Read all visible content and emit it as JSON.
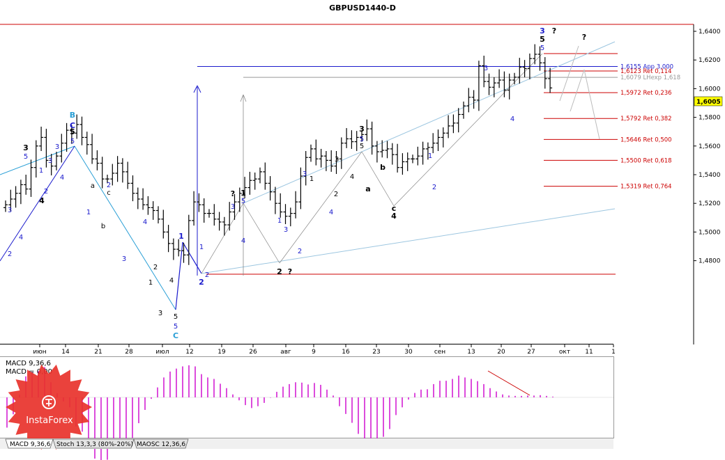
{
  "chart_data": {
    "type": "candlestick",
    "title": "GBPUSD1440-D",
    "price_axis": {
      "ticks": [
        "1,6400",
        "1,6200",
        "1,6000",
        "1,5800",
        "1,5600",
        "1,5400",
        "1,5200",
        "1,5000",
        "1,4800"
      ],
      "tick_values": [
        1.64,
        1.62,
        1.6,
        1.58,
        1.56,
        1.54,
        1.52,
        1.5,
        1.48
      ],
      "current_price": "1,6005",
      "current_value": 1.6005
    },
    "date_axis": {
      "ticks": [
        "июн",
        "14",
        "21",
        "28",
        "июл",
        "12",
        "19",
        "26",
        "авг",
        "9",
        "16",
        "23",
        "30",
        "сен",
        "13",
        "20",
        "27",
        "окт",
        "11",
        "1"
      ]
    },
    "levels": [
      {
        "label": "1,6155 App 3,000",
        "price": 1.6155,
        "color": "#1a1acc",
        "kind": "app"
      },
      {
        "label": "1,6123 Ret 0,114",
        "price": 1.6123,
        "color": "#cc0000",
        "kind": "ret"
      },
      {
        "label": "1,6079 LHexp 1,618",
        "price": 1.6079,
        "color": "#999999",
        "kind": "lh"
      },
      {
        "label": "1,5972 Ret 0,236",
        "price": 1.5972,
        "color": "#cc0000",
        "kind": "ret"
      },
      {
        "label": "1,5792 Ret 0,382",
        "price": 1.5792,
        "color": "#cc0000",
        "kind": "ret"
      },
      {
        "label": "1,5646 Ret 0,500",
        "price": 1.5646,
        "color": "#cc0000",
        "kind": "ret"
      },
      {
        "label": "1,5500 Ret 0,618",
        "price": 1.55,
        "color": "#cc0000",
        "kind": "ret"
      },
      {
        "label": "1,5319 Ret 0,764",
        "price": 1.5319,
        "color": "#cc0000",
        "kind": "ret"
      }
    ],
    "candles_close": [
      1.519,
      1.523,
      1.527,
      1.533,
      1.53,
      1.545,
      1.56,
      1.566,
      1.55,
      1.546,
      1.553,
      1.562,
      1.571,
      1.569,
      1.575,
      1.566,
      1.561,
      1.551,
      1.548,
      1.537,
      1.537,
      1.541,
      1.548,
      1.542,
      1.534,
      1.527,
      1.523,
      1.519,
      1.517,
      1.515,
      1.509,
      1.5,
      1.492,
      1.488,
      1.487,
      1.484,
      1.508,
      1.521,
      1.519,
      1.513,
      1.513,
      1.509,
      1.507,
      1.505,
      1.514,
      1.521,
      1.527,
      1.531,
      1.536,
      1.537,
      1.542,
      1.534,
      1.528,
      1.52,
      1.514,
      1.511,
      1.513,
      1.521,
      1.539,
      1.552,
      1.558,
      1.551,
      1.553,
      1.55,
      1.546,
      1.551,
      1.562,
      1.565,
      1.563,
      1.566,
      1.568,
      1.572,
      1.56,
      1.556,
      1.557,
      1.558,
      1.554,
      1.545,
      1.549,
      1.551,
      1.551,
      1.553,
      1.558,
      1.559,
      1.562,
      1.566,
      1.569,
      1.574,
      1.576,
      1.582,
      1.588,
      1.594,
      1.592,
      1.616,
      1.605,
      1.601,
      1.604,
      1.606,
      1.599,
      1.606,
      1.608,
      1.615,
      1.614,
      1.621,
      1.624,
      1.618,
      1.607,
      1.6005
    ],
    "series": [
      {
        "name": "MACD 9,36,6",
        "values": [
          -0.0082,
          -0.0046,
          0.0007,
          0.0057,
          0.0069,
          0.0071,
          0.0082,
          0.0041,
          0.0011,
          -0.0011,
          -0.0027,
          -0.0079,
          -0.0093,
          -0.0126,
          -0.0166,
          -0.0174,
          -0.0169,
          -0.0139,
          -0.0122,
          -0.0112,
          -0.011,
          -0.007,
          -0.0034,
          -0.0004,
          0.0027,
          0.0054,
          0.007,
          0.0078,
          0.0084,
          0.0087,
          0.0084,
          0.0063,
          0.0054,
          0.005,
          0.0037,
          0.0025,
          0.0008,
          -0.0008,
          -0.0021,
          -0.0029,
          -0.0024,
          -0.0015,
          -0.0001,
          0.0015,
          0.0029,
          0.0036,
          0.0041,
          0.004,
          0.0035,
          0.0039,
          0.0034,
          0.0021,
          0.0005,
          -0.0024,
          -0.0045,
          -0.0069,
          -0.0099,
          -0.0114,
          -0.0119,
          -0.0112,
          -0.0107,
          -0.0086,
          -0.0048,
          -0.0027,
          -0.0006,
          0.0012,
          0.0021,
          0.0022,
          0.0036,
          0.0045,
          0.0045,
          0.005,
          0.0059,
          0.0054,
          0.005,
          0.0044,
          0.0036,
          0.0025,
          0.0016,
          0.0008,
          0.0005,
          0.0004,
          0.0004,
          0.0005,
          0.0005,
          0.0006,
          0.0004,
          0.0002
        ]
      },
      {
        "name": "MACD = 0,00",
        "values": []
      }
    ]
  },
  "labels": {
    "macd_title": "MACD 9,36,6",
    "macd_value": "MACD = 0,00"
  },
  "tabs": [
    {
      "label": "MACD 9,36,6",
      "active": true
    },
    {
      "label": "Stoch 13,3,3 (80%-20%)",
      "active": false
    },
    {
      "label": "MAOSC 12,36,6",
      "active": false
    }
  ],
  "watermark": "InstaForex",
  "wave_labels": {
    "main": [
      {
        "t": "B",
        "c": "#2a9fd6",
        "x": 104,
        "y": 169,
        "b": 1
      },
      {
        "t": "C",
        "c": "#1a1acc",
        "x": 104,
        "y": 184,
        "b": 1
      },
      {
        "t": "5",
        "c": "#000",
        "x": 104,
        "y": 193,
        "b": 1
      },
      {
        "t": "5",
        "c": "#1a1acc",
        "x": 104,
        "y": 206,
        "b": 0
      },
      {
        "t": "3",
        "c": "#000",
        "x": 37,
        "y": 216,
        "b": 1
      },
      {
        "t": "5",
        "c": "#1a1acc",
        "x": 37,
        "y": 228,
        "b": 0
      },
      {
        "t": "3",
        "c": "#1a1acc",
        "x": 82,
        "y": 214,
        "b": 0
      },
      {
        "t": "1",
        "c": "#1a1acc",
        "x": 59,
        "y": 248,
        "b": 0
      },
      {
        "t": "3",
        "c": "#1a1acc",
        "x": 72,
        "y": 234,
        "b": 0
      },
      {
        "t": "2",
        "c": "#1a1acc",
        "x": 66,
        "y": 278,
        "b": 0
      },
      {
        "t": "4",
        "c": "#1a1acc",
        "x": 89,
        "y": 258,
        "b": 0
      },
      {
        "t": "4",
        "c": "#000",
        "x": 60,
        "y": 292,
        "b": 1
      },
      {
        "t": "3",
        "c": "#1a1acc",
        "x": 14,
        "y": 305,
        "b": 0
      },
      {
        "t": "4",
        "c": "#1a1acc",
        "x": 30,
        "y": 344,
        "b": 0
      },
      {
        "t": "2",
        "c": "#1a1acc",
        "x": 14,
        "y": 368,
        "b": 0
      },
      {
        "t": "1",
        "c": "#1a1acc",
        "x": 127,
        "y": 308,
        "b": 0
      },
      {
        "t": "2",
        "c": "#1a1acc",
        "x": 156,
        "y": 269,
        "b": 0
      },
      {
        "t": "c",
        "c": "#000",
        "x": 156,
        "y": 280,
        "b": 0
      },
      {
        "t": "a",
        "c": "#000",
        "x": 133,
        "y": 270,
        "b": 0
      },
      {
        "t": "b",
        "c": "#000",
        "x": 148,
        "y": 328,
        "b": 0
      },
      {
        "t": "3",
        "c": "#1a1acc",
        "x": 178,
        "y": 375,
        "b": 0
      },
      {
        "t": "4",
        "c": "#1a1acc",
        "x": 208,
        "y": 322,
        "b": 0
      },
      {
        "t": "2",
        "c": "#000",
        "x": 223,
        "y": 387,
        "b": 0
      },
      {
        "t": "1",
        "c": "#000",
        "x": 216,
        "y": 409,
        "b": 0
      },
      {
        "t": "3",
        "c": "#000",
        "x": 230,
        "y": 453,
        "b": 0
      },
      {
        "t": "4",
        "c": "#000",
        "x": 246,
        "y": 406,
        "b": 0
      },
      {
        "t": "5",
        "c": "#000",
        "x": 252,
        "y": 458,
        "b": 0
      },
      {
        "t": "5",
        "c": "#1a1acc",
        "x": 252,
        "y": 472,
        "b": 0
      },
      {
        "t": "C",
        "c": "#2a9fd6",
        "x": 252,
        "y": 486,
        "b": 1
      },
      {
        "t": "1",
        "c": "#1a1acc",
        "x": 260,
        "y": 343,
        "b": 1
      },
      {
        "t": "1",
        "c": "#1a1acc",
        "x": 289,
        "y": 358,
        "b": 0
      },
      {
        "t": "2",
        "c": "#1a1acc",
        "x": 289,
        "y": 409,
        "b": 1
      },
      {
        "t": "2",
        "c": "#1a1acc",
        "x": 297,
        "y": 398,
        "b": 0
      },
      {
        "t": "?",
        "c": "#000",
        "x": 334,
        "y": 282,
        "b": 1
      },
      {
        "t": "1",
        "c": "#000",
        "x": 349,
        "y": 281,
        "b": 1
      },
      {
        "t": "5",
        "c": "#1a1acc",
        "x": 349,
        "y": 292,
        "b": 0
      },
      {
        "t": "3",
        "c": "#1a1acc",
        "x": 334,
        "y": 300,
        "b": 0
      },
      {
        "t": "4",
        "c": "#1a1acc",
        "x": 349,
        "y": 349,
        "b": 0
      },
      {
        "t": "1",
        "c": "#1a1acc",
        "x": 401,
        "y": 320,
        "b": 0
      },
      {
        "t": "3",
        "c": "#1a1acc",
        "x": 410,
        "y": 333,
        "b": 0
      },
      {
        "t": "2",
        "c": "#000",
        "x": 401,
        "y": 394,
        "b": 1
      },
      {
        "t": "?",
        "c": "#000",
        "x": 416,
        "y": 394,
        "b": 1
      },
      {
        "t": "2",
        "c": "#1a1acc",
        "x": 430,
        "y": 364,
        "b": 0
      },
      {
        "t": "3",
        "c": "#1a1acc",
        "x": 437,
        "y": 253,
        "b": 0
      },
      {
        "t": "1",
        "c": "#000",
        "x": 447,
        "y": 260,
        "b": 0
      },
      {
        "t": "2",
        "c": "#000",
        "x": 482,
        "y": 282,
        "b": 0
      },
      {
        "t": "4",
        "c": "#1a1acc",
        "x": 475,
        "y": 308,
        "b": 0
      },
      {
        "t": "3",
        "c": "#000",
        "x": 483,
        "y": 232,
        "b": 0
      },
      {
        "t": "4",
        "c": "#000",
        "x": 505,
        "y": 257,
        "b": 0
      },
      {
        "t": "3",
        "c": "#000",
        "x": 519,
        "y": 189,
        "b": 1
      },
      {
        "t": "5",
        "c": "#1a1acc",
        "x": 519,
        "y": 203,
        "b": 0
      },
      {
        "t": "5",
        "c": "#000",
        "x": 519,
        "y": 213,
        "b": 0
      },
      {
        "t": "a",
        "c": "#000",
        "x": 528,
        "y": 275,
        "b": 1
      },
      {
        "t": "b",
        "c": "#000",
        "x": 549,
        "y": 244,
        "b": 1
      },
      {
        "t": "c",
        "c": "#000",
        "x": 565,
        "y": 303,
        "b": 1
      },
      {
        "t": "4",
        "c": "#000",
        "x": 565,
        "y": 314,
        "b": 1
      },
      {
        "t": "1",
        "c": "#1a1acc",
        "x": 617,
        "y": 227,
        "b": 0
      },
      {
        "t": "2",
        "c": "#1a1acc",
        "x": 623,
        "y": 272,
        "b": 0
      },
      {
        "t": "3",
        "c": "#1a1acc",
        "x": 697,
        "y": 101,
        "b": 0
      },
      {
        "t": "4",
        "c": "#1a1acc",
        "x": 735,
        "y": 174,
        "b": 0
      },
      {
        "t": "3",
        "c": "#1a1acc",
        "x": 778,
        "y": 48,
        "b": 1
      },
      {
        "t": "5",
        "c": "#000",
        "x": 778,
        "y": 60,
        "b": 1
      },
      {
        "t": "5",
        "c": "#1a1acc",
        "x": 778,
        "y": 72,
        "b": 0
      },
      {
        "t": "?",
        "c": "#000",
        "x": 795,
        "y": 48,
        "b": 1
      },
      {
        "t": "?",
        "c": "#000",
        "x": 838,
        "y": 57,
        "b": 1
      }
    ]
  }
}
